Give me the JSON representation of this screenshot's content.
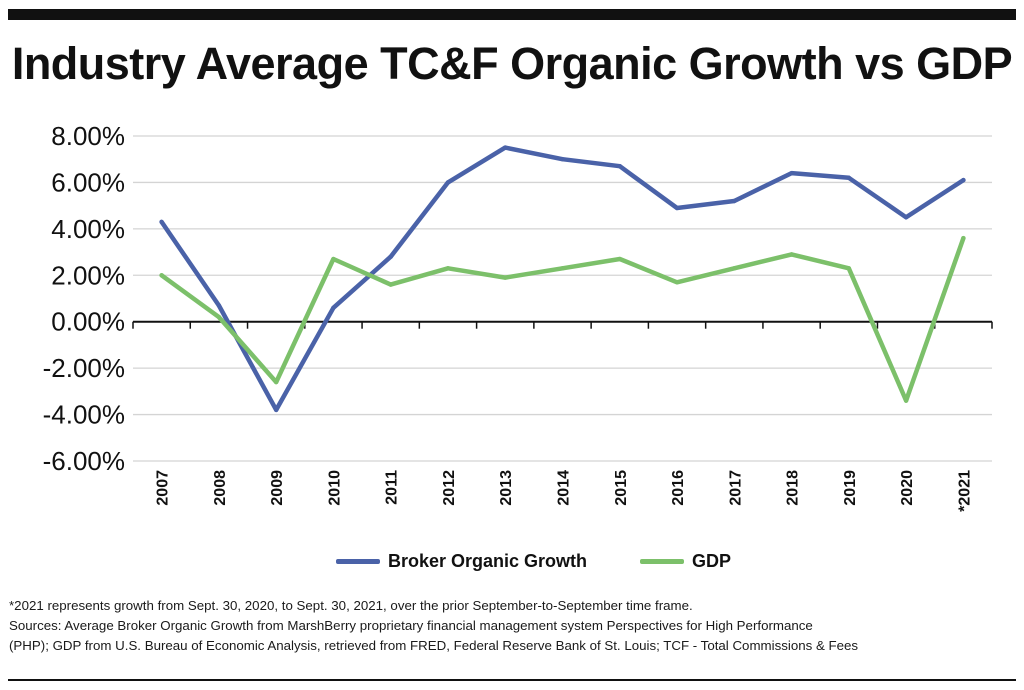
{
  "title": "Industry Average TC&F Organic Growth vs GDP",
  "chart_data": {
    "type": "line",
    "title": "Industry Average TC&F Organic Growth vs GDP",
    "categories": [
      "2007",
      "2008",
      "2009",
      "2010",
      "2011",
      "2012",
      "2013",
      "2014",
      "2015",
      "2016",
      "2017",
      "2018",
      "2019",
      "2020",
      "*2021"
    ],
    "series": [
      {
        "name": "Broker Organic Growth",
        "color": "#4a62a8",
        "values": [
          4.3,
          0.7,
          -3.8,
          0.6,
          2.8,
          6.0,
          7.5,
          7.0,
          6.7,
          4.9,
          5.2,
          6.4,
          6.2,
          4.5,
          6.1
        ]
      },
      {
        "name": "GDP",
        "color": "#7cc06a",
        "values": [
          2.0,
          0.2,
          -2.6,
          2.7,
          1.6,
          2.3,
          1.9,
          2.3,
          2.7,
          1.7,
          2.3,
          2.9,
          2.3,
          -3.4,
          3.6
        ]
      }
    ],
    "y_ticks": [
      8,
      6,
      4,
      2,
      0,
      -2,
      -4,
      -6
    ],
    "y_tick_labels": [
      "8.00%",
      "6.00%",
      "4.00%",
      "2.00%",
      "0.00%",
      "-2.00%",
      "-4.00%",
      "-6.00%"
    ],
    "ylim": [
      -6,
      8
    ],
    "xlabel": "",
    "ylabel": "",
    "grid": true,
    "legend_position": "bottom"
  },
  "footnotes": [
    "*2021 represents growth from Sept. 30, 2020, to Sept. 30, 2021, over the prior September-to-September time frame.",
    "Sources: Average Broker Organic Growth from MarshBerry proprietary financial management system Perspectives for High Performance",
    "(PHP); GDP from U.S. Bureau of Economic Analysis, retrieved from FRED, Federal Reserve Bank of St. Louis; TCF - Total Commissions & Fees"
  ]
}
